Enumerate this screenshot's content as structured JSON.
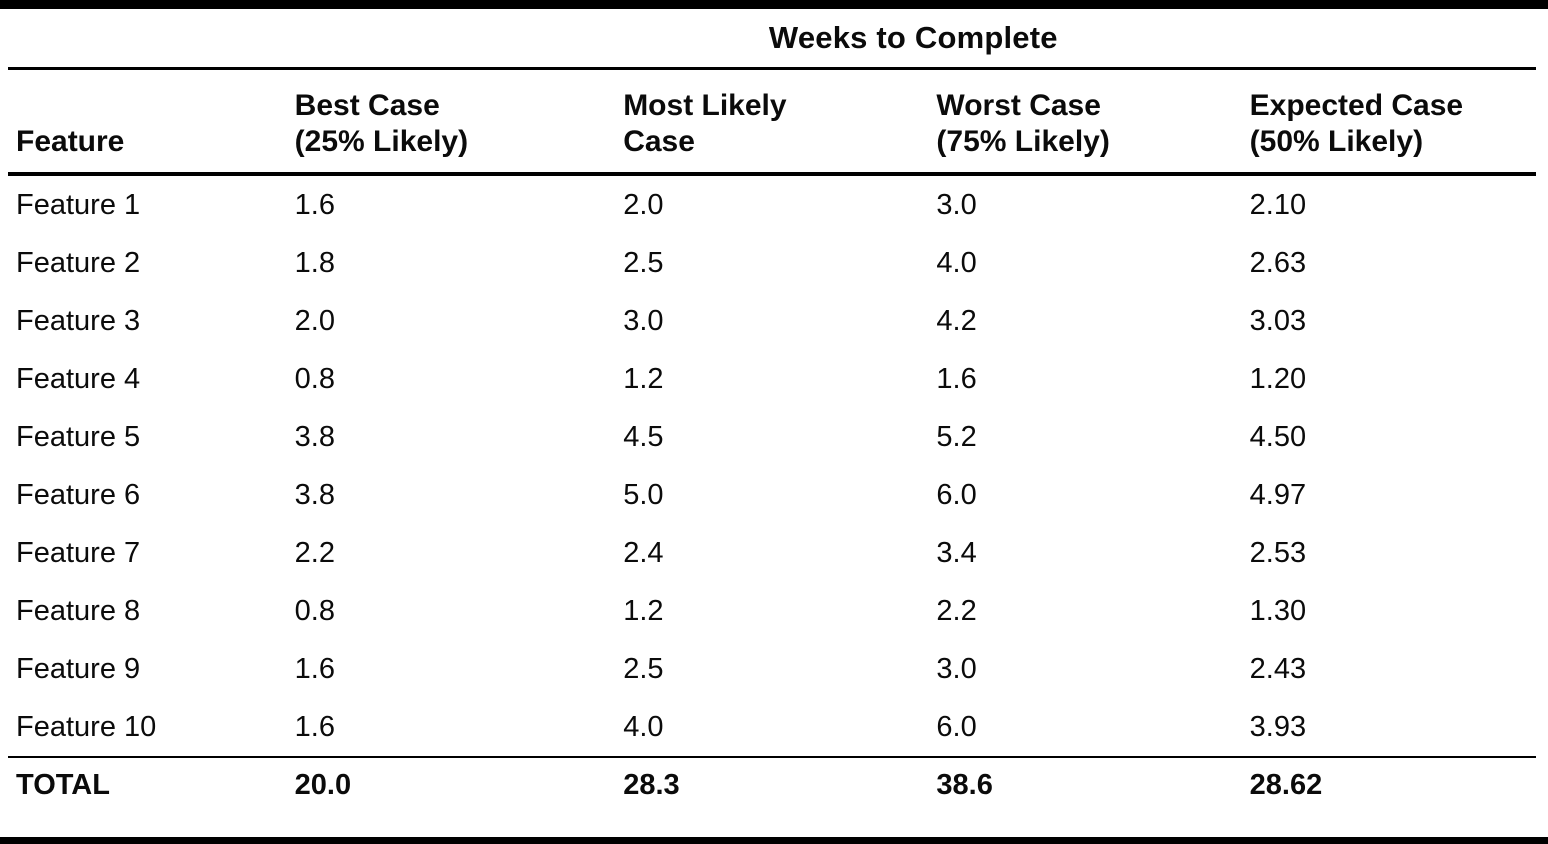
{
  "page": {
    "background_color": "#ffffff",
    "ink_color": "#0b0b0b"
  },
  "table": {
    "spanner": "Weeks to Complete",
    "feature_header": "Feature",
    "columns": [
      {
        "line1": "Best Case",
        "line2": "(25% Likely)"
      },
      {
        "line1": "Most Likely",
        "line2": "Case"
      },
      {
        "line1": "Worst Case",
        "line2": "(75% Likely)"
      },
      {
        "line1": "Expected Case",
        "line2": "(50% Likely)"
      }
    ],
    "rows": [
      {
        "feature": "Feature 1",
        "best": "1.6",
        "likely": "2.0",
        "worst": "3.0",
        "expected": "2.10"
      },
      {
        "feature": "Feature 2",
        "best": "1.8",
        "likely": "2.5",
        "worst": "4.0",
        "expected": "2.63"
      },
      {
        "feature": "Feature 3",
        "best": "2.0",
        "likely": "3.0",
        "worst": "4.2",
        "expected": "3.03"
      },
      {
        "feature": "Feature 4",
        "best": "0.8",
        "likely": "1.2",
        "worst": "1.6",
        "expected": "1.20"
      },
      {
        "feature": "Feature 5",
        "best": "3.8",
        "likely": "4.5",
        "worst": "5.2",
        "expected": "4.50"
      },
      {
        "feature": "Feature 6",
        "best": "3.8",
        "likely": "5.0",
        "worst": "6.0",
        "expected": "4.97"
      },
      {
        "feature": "Feature 7",
        "best": "2.2",
        "likely": "2.4",
        "worst": "3.4",
        "expected": "2.53"
      },
      {
        "feature": "Feature 8",
        "best": "0.8",
        "likely": "1.2",
        "worst": "2.2",
        "expected": "1.30"
      },
      {
        "feature": "Feature 9",
        "best": "1.6",
        "likely": "2.5",
        "worst": "3.0",
        "expected": "2.43"
      },
      {
        "feature": "Feature 10",
        "best": "1.6",
        "likely": "4.0",
        "worst": "6.0",
        "expected": "3.93"
      }
    ],
    "total": {
      "feature": "TOTAL",
      "best": "20.0",
      "likely": "28.3",
      "worst": "38.6",
      "expected": "28.62"
    }
  }
}
